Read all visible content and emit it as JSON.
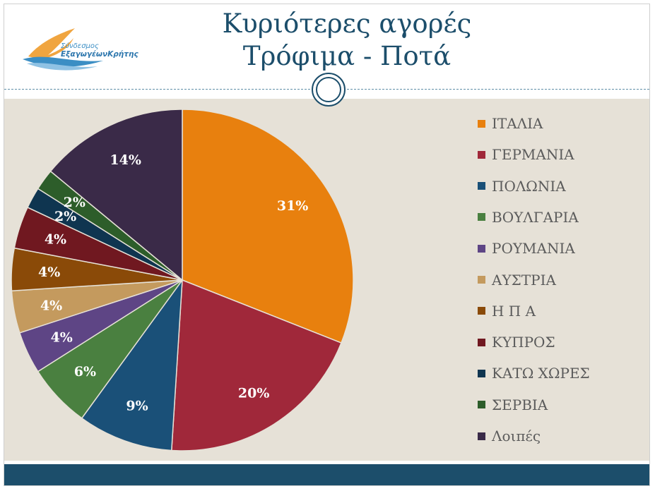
{
  "slide": {
    "title_line1": "Κυριότερες αγορές",
    "title_line2": "Τρόφιμα - Ποτά",
    "logo": {
      "line1": "Σύνδεσμος",
      "line2": "ΕξαγωγέωνΚρήτης"
    },
    "colors": {
      "title": "#1c4e6b",
      "content_bg": "#e6e1d7",
      "footer": "#1c4e6b"
    }
  },
  "chart_data": {
    "type": "pie",
    "categories": [
      "ΙΤΑΛΙΑ",
      "ΓΕΡΜΑΝΙΑ",
      "ΠΟΛΩΝΙΑ",
      "ΒΟΥΛΓΑΡΙΑ",
      "ΡΟΥΜΑΝΙΑ",
      "ΑΥΣΤΡΙΑ",
      "Η Π Α",
      "ΚΥΠΡΟΣ",
      "ΚΑΤΩ ΧΩΡΕΣ",
      "ΣΕΡΒΙΑ",
      "Λοιπές"
    ],
    "values": [
      31,
      20,
      9,
      6,
      4,
      4,
      4,
      4,
      2,
      2,
      14
    ],
    "labels": [
      "31%",
      "20%",
      "9%",
      "6%",
      "4%",
      "4%",
      "4%",
      "4%",
      "2%",
      "2%",
      "14%"
    ],
    "colors": [
      "#e8800e",
      "#a0283a",
      "#1a5078",
      "#4a8040",
      "#5e4585",
      "#c49a5e",
      "#8a4a08",
      "#701820",
      "#0f3550",
      "#2d5d2a",
      "#3a2a48"
    ],
    "legend_position": "right"
  }
}
